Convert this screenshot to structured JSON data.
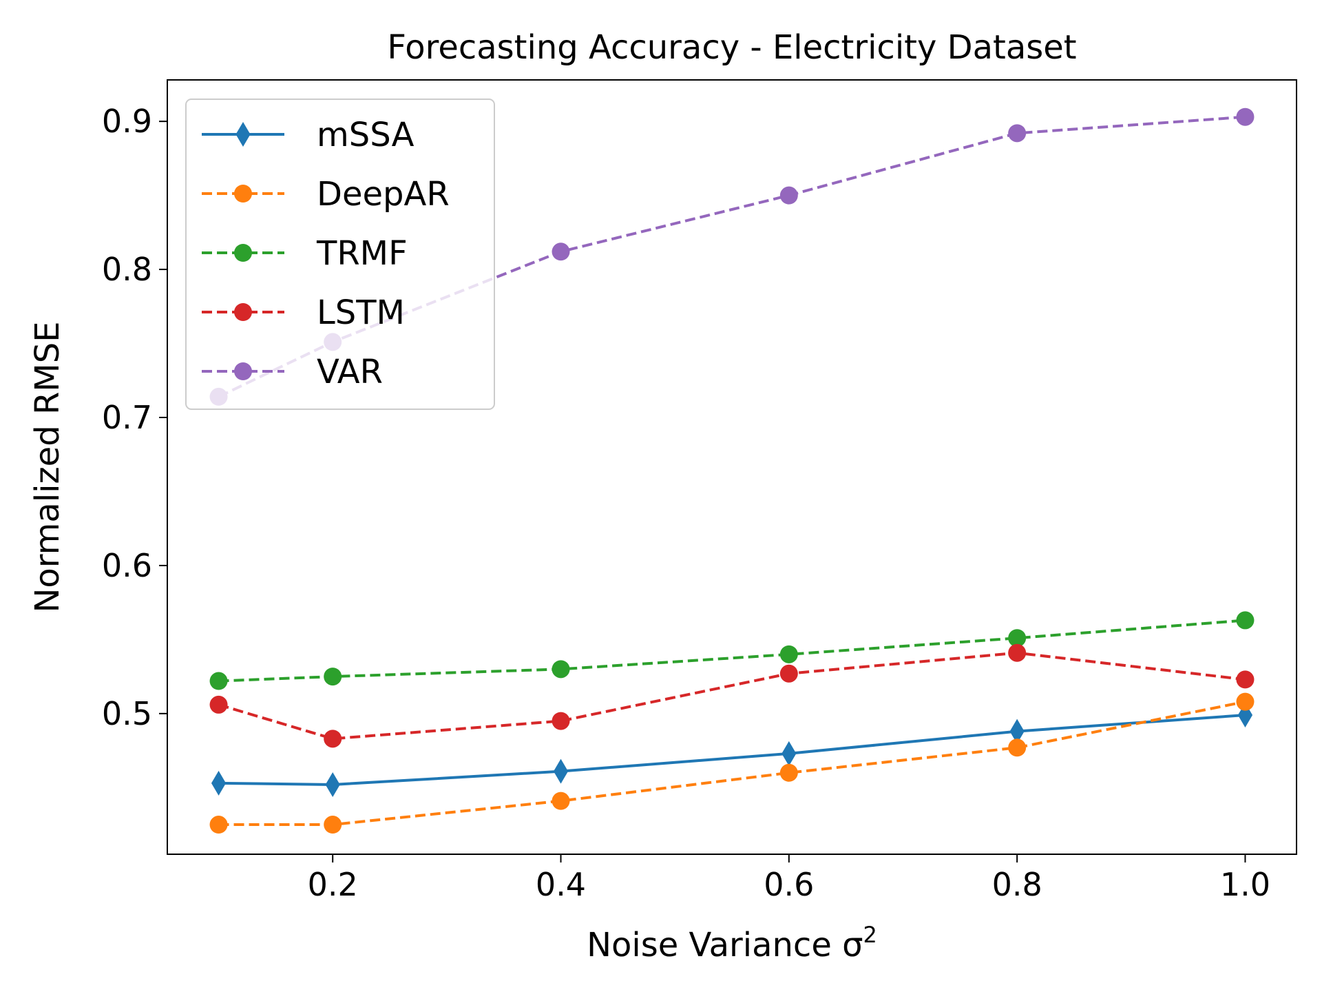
{
  "chart_data": {
    "type": "line",
    "title": "Forecasting Accuracy - Electricity Dataset",
    "xlabel": "Noise Variance σ",
    "xlabel_superscript": "2",
    "ylabel": "Normalized RMSE",
    "xlim": [
      0.055,
      1.045
    ],
    "ylim": [
      0.405,
      0.928
    ],
    "xticks": [
      0.2,
      0.4,
      0.6,
      0.8,
      1.0
    ],
    "xtick_labels": [
      "0.2",
      "0.4",
      "0.6",
      "0.8",
      "1.0"
    ],
    "yticks": [
      0.5,
      0.6,
      0.7,
      0.8,
      0.9
    ],
    "ytick_labels": [
      "0.5",
      "0.6",
      "0.7",
      "0.8",
      "0.9"
    ],
    "grid": false,
    "legend_position": "upper-left",
    "x": [
      0.1,
      0.2,
      0.4,
      0.6,
      0.8,
      1.0
    ],
    "series": [
      {
        "name": "mSSA",
        "color": "#1f77b4",
        "line": "solid",
        "marker": "thin-diamond",
        "values": [
          0.453,
          0.452,
          0.461,
          0.473,
          0.488,
          0.499
        ]
      },
      {
        "name": "DeepAR",
        "color": "#ff7f0e",
        "line": "dashed",
        "marker": "circle",
        "values": [
          0.425,
          0.425,
          0.441,
          0.46,
          0.477,
          0.508
        ]
      },
      {
        "name": "TRMF",
        "color": "#2ca02c",
        "line": "dashed",
        "marker": "circle",
        "values": [
          0.522,
          0.525,
          0.53,
          0.54,
          0.551,
          0.563
        ]
      },
      {
        "name": "LSTM",
        "color": "#d62728",
        "line": "dashed",
        "marker": "circle",
        "values": [
          0.506,
          0.483,
          0.495,
          0.527,
          0.541,
          0.523
        ]
      },
      {
        "name": "VAR",
        "color": "#9467bd",
        "line": "dashed",
        "marker": "circle",
        "values": [
          0.714,
          0.751,
          0.812,
          0.85,
          0.892,
          0.903
        ]
      }
    ]
  }
}
